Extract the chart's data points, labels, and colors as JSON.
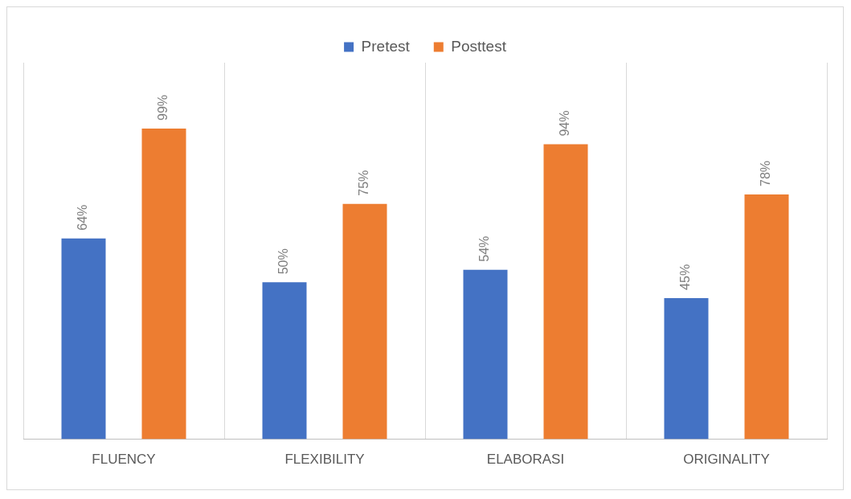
{
  "chart_data": {
    "type": "bar",
    "categories": [
      "FLUENCY",
      "FLEXIBILITY",
      "ELABORASI",
      "ORIGINALITY"
    ],
    "series": [
      {
        "name": "Pretest",
        "color": "#4472c4",
        "values": [
          64,
          50,
          54,
          45
        ],
        "value_labels": [
          "64%",
          "50%",
          "54%",
          "45%"
        ]
      },
      {
        "name": "Posttest",
        "color": "#ed7d31",
        "values": [
          99,
          75,
          94,
          78
        ],
        "value_labels": [
          "99%",
          "75%",
          "94%",
          "78%"
        ]
      }
    ],
    "grid": "x",
    "legend": "top"
  }
}
